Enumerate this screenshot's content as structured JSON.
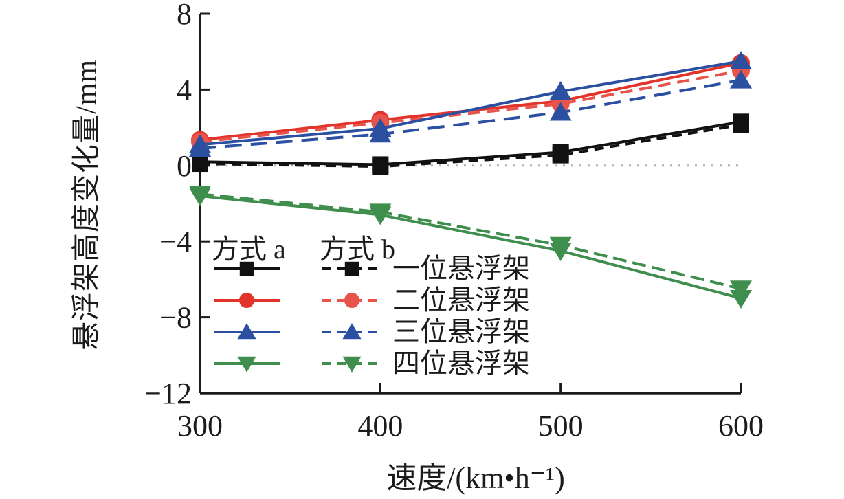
{
  "colors": {
    "axis": "#1a1a1a",
    "text": "#1b1b1b",
    "zero_line": "#b0b0b0",
    "series_black": "#111111",
    "series_red": "#e2342b",
    "series_red_dashed": "#e8544c",
    "series_blue": "#2b50a1",
    "series_green": "#3f8e4e"
  },
  "chart_data": {
    "type": "line",
    "title": "",
    "xlabel": "速度/(km•h⁻¹)",
    "ylabel": "悬浮架高度变化量/mm",
    "x": [
      300,
      400,
      500,
      600
    ],
    "x_tick_labels": [
      "300",
      "400",
      "500",
      "600"
    ],
    "xlim": [
      300,
      600
    ],
    "y_ticks": [
      8,
      4,
      0,
      -4,
      -8,
      -12
    ],
    "y_tick_labels": [
      "8",
      "4",
      "0",
      "−4",
      "−8",
      "−12"
    ],
    "ylim": [
      -12,
      8
    ],
    "grid": false,
    "zero_reference_line": {
      "y": 0,
      "style": "dotted",
      "color": "#b0b0b0"
    },
    "legend": {
      "position": "inside-lower-left",
      "col_a": "方式 a",
      "col_b": "方式 b",
      "rows": [
        "一位悬浮架",
        "二位悬浮架",
        "三位悬浮架",
        "四位悬浮架"
      ]
    },
    "series": [
      {
        "name": "一位悬浮架 方式a",
        "group": "一位悬浮架",
        "variant": "a",
        "style": "solid",
        "marker": "square",
        "color": "#111111",
        "dasharray": "",
        "values": [
          0.2,
          0.05,
          0.7,
          2.3
        ]
      },
      {
        "name": "一位悬浮架 方式b",
        "group": "一位悬浮架",
        "variant": "b",
        "style": "dashed",
        "marker": "square",
        "color": "#111111",
        "dasharray": "14 9",
        "values": [
          0.1,
          -0.05,
          0.55,
          2.15
        ]
      },
      {
        "name": "二位悬浮架 方式a",
        "group": "二位悬浮架",
        "variant": "a",
        "style": "solid",
        "marker": "circle",
        "color": "#e2342b",
        "dasharray": "",
        "values": [
          1.35,
          2.4,
          3.4,
          5.4
        ]
      },
      {
        "name": "二位悬浮架 方式b",
        "group": "二位悬浮架",
        "variant": "b",
        "style": "dashed",
        "marker": "circle",
        "color": "#e8544c",
        "dasharray": "18 10",
        "values": [
          1.25,
          2.25,
          3.25,
          5.0
        ]
      },
      {
        "name": "三位悬浮架 方式a",
        "group": "三位悬浮架",
        "variant": "a",
        "style": "solid",
        "marker": "triangle-up",
        "color": "#2b50a1",
        "dasharray": "",
        "values": [
          1.1,
          1.95,
          3.9,
          5.5
        ]
      },
      {
        "name": "三位悬浮架 方式b",
        "group": "三位悬浮架",
        "variant": "b",
        "style": "dashed",
        "marker": "triangle-up",
        "color": "#2b50a1",
        "dasharray": "24 13",
        "values": [
          0.9,
          1.65,
          2.8,
          4.5
        ]
      },
      {
        "name": "四位悬浮架 方式a",
        "group": "四位悬浮架",
        "variant": "a",
        "style": "solid",
        "marker": "triangle-down",
        "color": "#3f8e4e",
        "dasharray": "",
        "values": [
          -1.6,
          -2.6,
          -4.5,
          -7.0
        ]
      },
      {
        "name": "四位悬浮架 方式b",
        "group": "四位悬浮架",
        "variant": "b",
        "style": "dashed",
        "marker": "triangle-down",
        "color": "#3f8e4e",
        "dasharray": "20 9",
        "values": [
          -1.5,
          -2.45,
          -4.2,
          -6.5
        ]
      }
    ]
  }
}
